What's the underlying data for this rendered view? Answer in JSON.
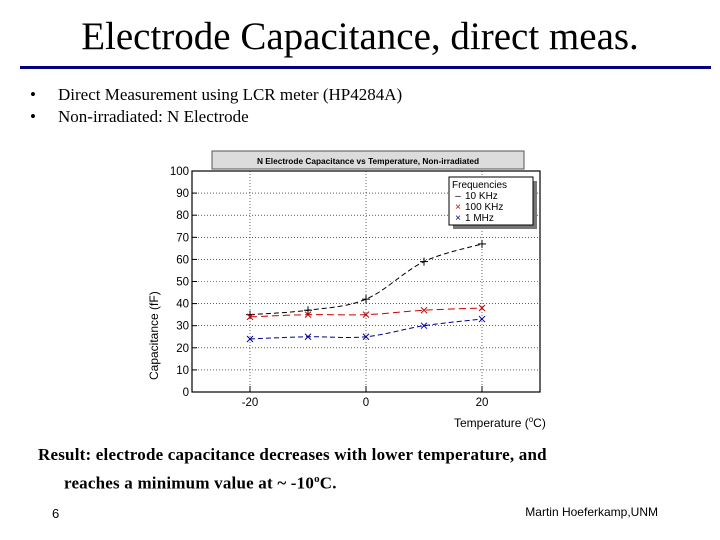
{
  "slide": {
    "title": "Electrode Capacitance, direct meas.",
    "bullets": [
      {
        "marker": "•",
        "text": "Direct Measurement using LCR meter (HP4284A)"
      },
      {
        "marker": "•",
        "text": "Non-irradiated:  N Electrode"
      }
    ],
    "result_line1": "Result: electrode capacitance decreases with lower temperature, and",
    "result_line2_prefix": "reaches a minimum value at ~ -10",
    "result_line2_sup": "o",
    "result_line2_suffix": "C.",
    "page_number": "6",
    "author": "Martin Hoeferkamp,UNM",
    "colors": {
      "rule": "#000080",
      "title_bar": "#dcdcdc"
    }
  },
  "chart_data": {
    "type": "line",
    "title": "N Electrode Capacitance vs Temperature, Non-irradiated",
    "xlabel_prefix": "Temperature (",
    "xlabel_sup": "o",
    "xlabel_suffix": "C)",
    "ylabel": "Capacitance (fF)",
    "xlim": [
      -30,
      30
    ],
    "ylim": [
      0,
      100
    ],
    "xticks": [
      "-20",
      "0",
      "20"
    ],
    "yticks": [
      "0",
      "10",
      "20",
      "30",
      "40",
      "50",
      "60",
      "70",
      "80",
      "90",
      "100"
    ],
    "grid": true,
    "legend_title": "Frequencies",
    "legend_position": "top-right",
    "series": [
      {
        "name": "10 KHz",
        "color": "#000000",
        "marker": "–",
        "dash": "5,3",
        "x": [
          -20,
          -10,
          0,
          10,
          20
        ],
        "y": [
          35,
          37,
          42,
          59,
          67
        ]
      },
      {
        "name": "100 KHz",
        "color": "#cc0000",
        "marker": "×",
        "dash": "7,4",
        "x": [
          -20,
          -10,
          0,
          10,
          20
        ],
        "y": [
          34,
          35,
          35,
          37,
          38
        ]
      },
      {
        "name": "1 MHz",
        "color": "#000099",
        "marker": "×",
        "dash": "5,3",
        "x": [
          -20,
          -10,
          0,
          10,
          20
        ],
        "y": [
          24,
          25,
          25,
          30,
          33
        ]
      }
    ]
  }
}
